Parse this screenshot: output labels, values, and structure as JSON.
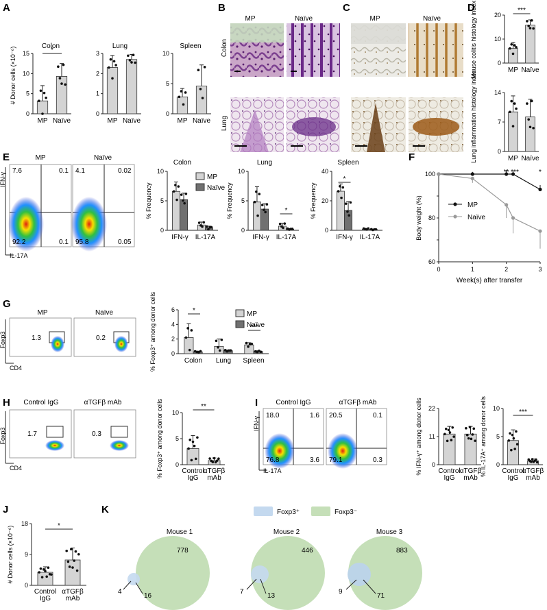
{
  "panels": {
    "A": {
      "label": "A",
      "ylabel": "# Donor cells (×10⁻⁶)",
      "groups": [
        "MP",
        "Naïve"
      ],
      "charts": [
        {
          "title": "Colon",
          "ticks": [
            "0",
            "5",
            "10",
            "15"
          ],
          "sig": "*"
        },
        {
          "title": "Lung",
          "ticks": [
            "0",
            "1",
            "2",
            "3"
          ],
          "sig": ""
        },
        {
          "title": "Spleen",
          "ticks": [
            "0",
            "5",
            "10"
          ],
          "sig": ""
        }
      ]
    },
    "B": {
      "label": "B",
      "cols": [
        "MP",
        "Naïve"
      ],
      "rows": [
        "Colon",
        "Lung"
      ]
    },
    "C": {
      "label": "C",
      "cols": [
        "MP",
        "Naïve"
      ]
    },
    "D": {
      "label": "D",
      "groups": [
        "MP",
        "Naïve"
      ],
      "top": {
        "ylabel": "Mouse colitis histology index",
        "ticks": [
          "0",
          "10",
          "20"
        ],
        "sig": "***"
      },
      "bottom": {
        "ylabel": "Lung inflammation histology index",
        "ticks": [
          "0",
          "7",
          "14"
        ]
      }
    },
    "E": {
      "label": "E",
      "flow_titles": [
        "MP",
        "Naïve"
      ],
      "yaxis": "IFN-γ",
      "xaxis": "IL-17A",
      "quadrants": [
        [
          "7.6",
          "0.1",
          "92.2",
          "0.1"
        ],
        [
          "4.1",
          "0.02",
          "95.8",
          "0.05"
        ]
      ],
      "charts": [
        {
          "title": "Colon",
          "ticks": [
            "0",
            "5",
            "10"
          ],
          "sig": ""
        },
        {
          "title": "Lung",
          "ticks": [
            "0",
            "5",
            "10"
          ],
          "sig": "*"
        },
        {
          "title": "Spleen",
          "ticks": [
            "0",
            "20",
            "40"
          ],
          "sig": "*"
        }
      ],
      "ylabel": "% Frequency",
      "cats": [
        "IFN-γ",
        "IL-17A"
      ],
      "legend": [
        "MP",
        "Naïve"
      ]
    },
    "F": {
      "label": "F",
      "ylabel": "Body weight (%)",
      "xlabel": "Week(s) after transfer",
      "yticks": [
        "60",
        "70",
        "80",
        "90",
        "100"
      ],
      "xticks": [
        "0",
        "1",
        "2",
        "3"
      ],
      "legend": [
        "MP",
        "Naïve"
      ],
      "sigs": [
        "**",
        "***",
        "*"
      ]
    },
    "G": {
      "label": "G",
      "flow_titles": [
        "MP",
        "Naïve"
      ],
      "yaxis": "Foxp3",
      "xaxis": "CD4",
      "gates": [
        "1.3",
        "0.2"
      ],
      "ylabel": "% Foxp3⁺ among donor cells",
      "ticks": [
        "0",
        "2",
        "4",
        "6"
      ],
      "cats": [
        "Colon",
        "Lung",
        "Spleen"
      ],
      "legend": [
        "MP",
        "Naïve"
      ],
      "sigs": [
        "*",
        "***"
      ]
    },
    "H": {
      "label": "H",
      "flow_titles": [
        "Control IgG",
        "αTGFβ mAb"
      ],
      "yaxis": "Foxp3",
      "xaxis": "CD4",
      "gates": [
        "1.7",
        "0.3"
      ],
      "ylabel": "% Foxp3⁺ among donor cells",
      "ticks": [
        "0",
        "5",
        "10"
      ],
      "groups": [
        "Control IgG",
        "αTGFβ mAb"
      ],
      "sig": "**"
    },
    "I": {
      "label": "I",
      "flow_titles": [
        "Control IgG",
        "αTGFβ mAb"
      ],
      "yaxis": "IFN-γ",
      "xaxis": "IL-17A",
      "quadrants": [
        [
          "18.0",
          "1.6",
          "76.8",
          "3.6"
        ],
        [
          "20.5",
          "0.1",
          "79.1",
          "0.3"
        ]
      ],
      "chart1": {
        "ylabel": "% IFN-γ⁺ among donor cells",
        "ticks": [
          "0",
          "11",
          "22"
        ]
      },
      "chart2": {
        "ylabel": "% IL-17A⁺ among donor cells",
        "ticks": [
          "0",
          "5",
          "10"
        ],
        "sig": "***"
      },
      "groups": [
        "Control IgG",
        "αTGFβ mAb"
      ]
    },
    "J": {
      "label": "J",
      "ylabel": "# Donor cells (×10⁻⁶)",
      "ticks": [
        "0",
        "9",
        "18"
      ],
      "groups": [
        "Control IgG",
        "αTGFβ mAb"
      ],
      "sig": "*"
    },
    "K": {
      "label": "K",
      "legend": [
        "Foxp3⁺",
        "Foxp3⁻"
      ],
      "mice": [
        {
          "title": "Mouse 1",
          "pos_only": "4",
          "overlap": "16",
          "neg_only": "778"
        },
        {
          "title": "Mouse 2",
          "pos_only": "7",
          "overlap": "13",
          "neg_only": "446"
        },
        {
          "title": "Mouse 3",
          "pos_only": "9",
          "overlap": "71",
          "neg_only": "883"
        }
      ]
    }
  },
  "chart_data": [
    {
      "type": "bar",
      "panel": "A",
      "title": "Colon",
      "categories": [
        "MP",
        "Naïve"
      ],
      "values": [
        3.2,
        9.3
      ],
      "errors": [
        3.8,
        3.2
      ],
      "ylim": [
        0,
        15
      ],
      "ylabel": "# Donor cells (×10⁻⁶)"
    },
    {
      "type": "bar",
      "panel": "A",
      "title": "Lung",
      "categories": [
        "MP",
        "Naïve"
      ],
      "values": [
        2.3,
        2.7
      ],
      "errors": [
        0.6,
        0.25
      ],
      "ylim": [
        0,
        3
      ],
      "ylabel": "# Donor cells (×10⁻⁶)"
    },
    {
      "type": "bar",
      "panel": "A",
      "title": "Spleen",
      "categories": [
        "MP",
        "Naïve"
      ],
      "values": [
        2.8,
        4.6
      ],
      "errors": [
        1.4,
        3.5
      ],
      "ylim": [
        0,
        10
      ],
      "ylabel": "# Donor cells (×10⁻⁶)"
    },
    {
      "type": "bar",
      "panel": "D",
      "categories": [
        "MP",
        "Naïve"
      ],
      "values": [
        6.1,
        15.8
      ],
      "errors": [
        2.5,
        2.2
      ],
      "ylim": [
        0,
        20
      ],
      "ylabel": "Mouse colitis histology index"
    },
    {
      "type": "bar",
      "panel": "D",
      "categories": [
        "MP",
        "Naïve"
      ],
      "values": [
        9.4,
        8.2
      ],
      "errors": [
        3.8,
        4.2
      ],
      "ylim": [
        0,
        14
      ],
      "ylabel": "Lung inflammation histology index"
    },
    {
      "type": "bar",
      "panel": "E",
      "title": "Colon",
      "categories": [
        "IFN-γ",
        "IL-17A"
      ],
      "series": [
        {
          "name": "MP",
          "values": [
            6.6,
            0.9
          ],
          "errors": [
            1.6,
            0.5
          ]
        },
        {
          "name": "Naïve",
          "values": [
            5.2,
            0.4
          ],
          "errors": [
            1.1,
            0.3
          ]
        }
      ],
      "ylim": [
        0,
        10
      ],
      "ylabel": "% Frequency"
    },
    {
      "type": "bar",
      "panel": "E",
      "title": "Lung",
      "categories": [
        "IFN-γ",
        "IL-17A"
      ],
      "series": [
        {
          "name": "MP",
          "values": [
            4.8,
            0.7
          ],
          "errors": [
            2.6,
            0.5
          ]
        },
        {
          "name": "Naïve",
          "values": [
            3.6,
            0.2
          ],
          "errors": [
            0.9,
            0.1
          ]
        }
      ],
      "ylim": [
        0,
        10
      ],
      "ylabel": "% Frequency"
    },
    {
      "type": "bar",
      "panel": "E",
      "title": "Spleen",
      "categories": [
        "IFN-γ",
        "IL-17A"
      ],
      "series": [
        {
          "name": "MP",
          "values": [
            26.5,
            0.8
          ],
          "errors": [
            5,
            0.5
          ]
        },
        {
          "name": "Naïve",
          "values": [
            13.5,
            0.5
          ],
          "errors": [
            6,
            0.3
          ]
        }
      ],
      "ylim": [
        0,
        40
      ],
      "ylabel": "% Frequency"
    },
    {
      "type": "line",
      "panel": "F",
      "x": [
        0,
        1,
        2,
        2.2,
        3
      ],
      "series": [
        {
          "name": "MP",
          "values": [
            100,
            100,
            100,
            100,
            93
          ],
          "errors": [
            0.5,
            1,
            2,
            1.5,
            2
          ]
        },
        {
          "name": "Naïve",
          "values": [
            100,
            98,
            86,
            80,
            74
          ],
          "errors": [
            0.5,
            2,
            6,
            7,
            8
          ]
        }
      ],
      "ylim": [
        60,
        100
      ],
      "xlabel": "Week(s) after transfer",
      "ylabel": "Body weight (%)"
    },
    {
      "type": "bar",
      "panel": "G",
      "categories": [
        "Colon",
        "Lung",
        "Spleen"
      ],
      "series": [
        {
          "name": "MP",
          "values": [
            2.2,
            1.0,
            1.2
          ],
          "errors": [
            1.9,
            1.0,
            0.3
          ]
        },
        {
          "name": "Naïve",
          "values": [
            0.25,
            0.4,
            0.3
          ],
          "errors": [
            0.1,
            0.1,
            0.1
          ]
        }
      ],
      "ylim": [
        0,
        6
      ],
      "ylabel": "% Foxp3⁺ among donor cells"
    },
    {
      "type": "bar",
      "panel": "H",
      "categories": [
        "Control IgG",
        "αTGFβ mAb"
      ],
      "values": [
        3.1,
        0.8
      ],
      "errors": [
        2.5,
        0.5
      ],
      "ylim": [
        0,
        10
      ],
      "ylabel": "% Foxp3⁺ among donor cells"
    },
    {
      "type": "bar",
      "panel": "I",
      "categories": [
        "Control IgG",
        "αTGFβ mAb"
      ],
      "values": [
        12,
        12
      ],
      "errors": [
        3,
        3
      ],
      "ylim": [
        0,
        22
      ],
      "ylabel": "% IFN-γ⁺ among donor cells"
    },
    {
      "type": "bar",
      "panel": "I",
      "categories": [
        "Control IgG",
        "αTGFβ mAb"
      ],
      "values": [
        4.3,
        0.7
      ],
      "errors": [
        1.9,
        0.3
      ],
      "ylim": [
        0,
        10
      ],
      "ylabel": "% IL-17A⁺ among donor cells"
    },
    {
      "type": "bar",
      "panel": "J",
      "categories": [
        "Control IgG",
        "αTGFβ mAb"
      ],
      "values": [
        3.8,
        7.4
      ],
      "errors": [
        1.6,
        3.5
      ],
      "ylim": [
        0,
        18
      ],
      "ylabel": "# Donor cells (×10⁻⁶)"
    }
  ]
}
